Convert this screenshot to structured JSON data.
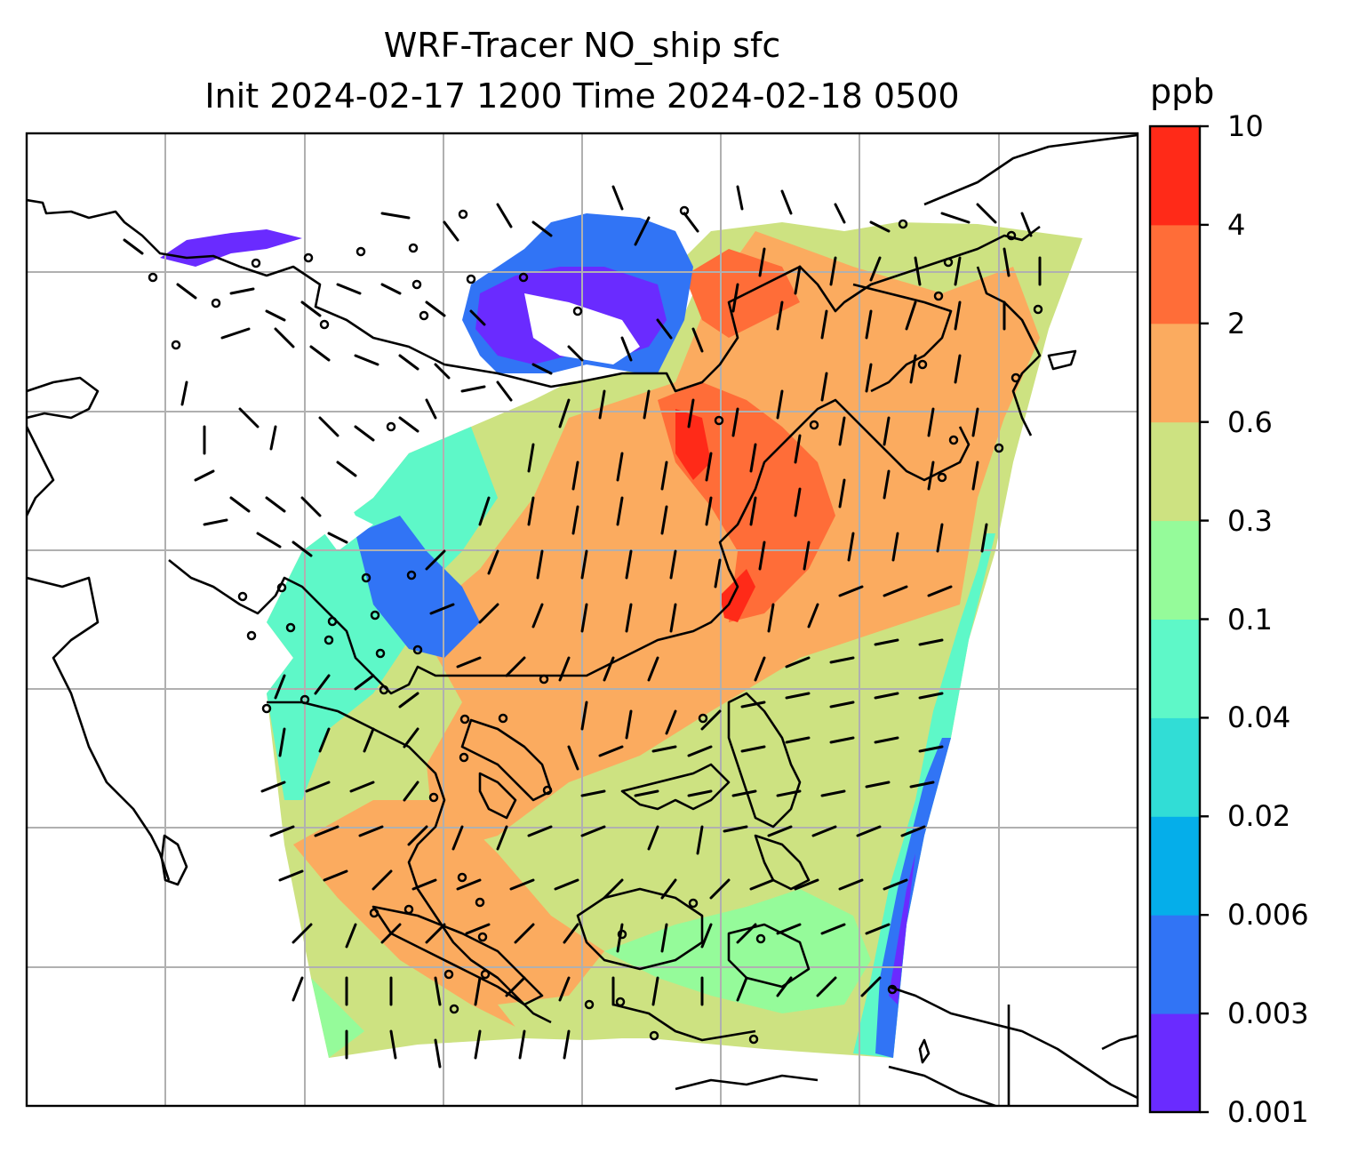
{
  "title": {
    "line1": "WRF-Tracer NO_ship sfc",
    "line2": "Init 2024-02-17 1200 Time 2024-02-18 0500"
  },
  "colorbar": {
    "unit": "ppb",
    "levels": [
      "0.001",
      "0.003",
      "0.006",
      "0.02",
      "0.04",
      "0.1",
      "0.3",
      "0.6",
      "2",
      "4",
      "10"
    ],
    "colors": [
      "#6a2bff",
      "#3174f5",
      "#05aeea",
      "#31ddd6",
      "#5ef8c8",
      "#95fb9a",
      "#cde281",
      "#fbab5f",
      "#ff6d38",
      "#ff2a18"
    ]
  },
  "map": {
    "background": "#ffffff",
    "gridline_color": "#b0b0b0",
    "coastline_color": "#000000",
    "features": [
      "coastlines",
      "gridlines",
      "wind-barbs",
      "calm-circles",
      "ship-NO-field"
    ]
  },
  "colors": {
    "border": "#000000"
  }
}
